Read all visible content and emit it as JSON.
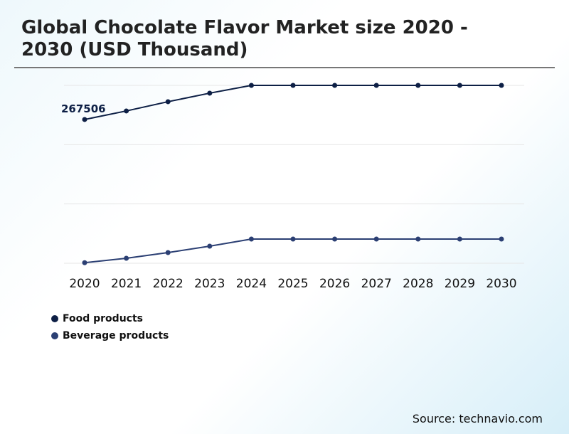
{
  "chart_data": {
    "type": "line",
    "title": "Global Chocolate Flavor Market size 2020 - 2030 (USD Thousand)",
    "x": [
      "2020",
      "2021",
      "2022",
      "2023",
      "2024",
      "2025",
      "2026",
      "2027",
      "2028",
      "2029",
      "2030"
    ],
    "series": [
      {
        "name": "Food products",
        "color": "#0d1f45",
        "values": [
          267506,
          283400,
          300600,
          316500,
          331000,
          331000,
          331000,
          331000,
          331000,
          331000,
          331000
        ]
      },
      {
        "name": "Beverage products",
        "color": "#2b3f73",
        "values": [
          1000,
          9300,
          19900,
          31800,
          45000,
          45000,
          45000,
          45000,
          45000,
          45000,
          45000
        ]
      }
    ],
    "annotations": [
      {
        "series": 0,
        "index": 0,
        "text": "267506"
      }
    ],
    "ylim": [
      0,
      331000
    ],
    "grid": true,
    "legend": "bottom-left"
  },
  "source": "Source: technavio.com"
}
